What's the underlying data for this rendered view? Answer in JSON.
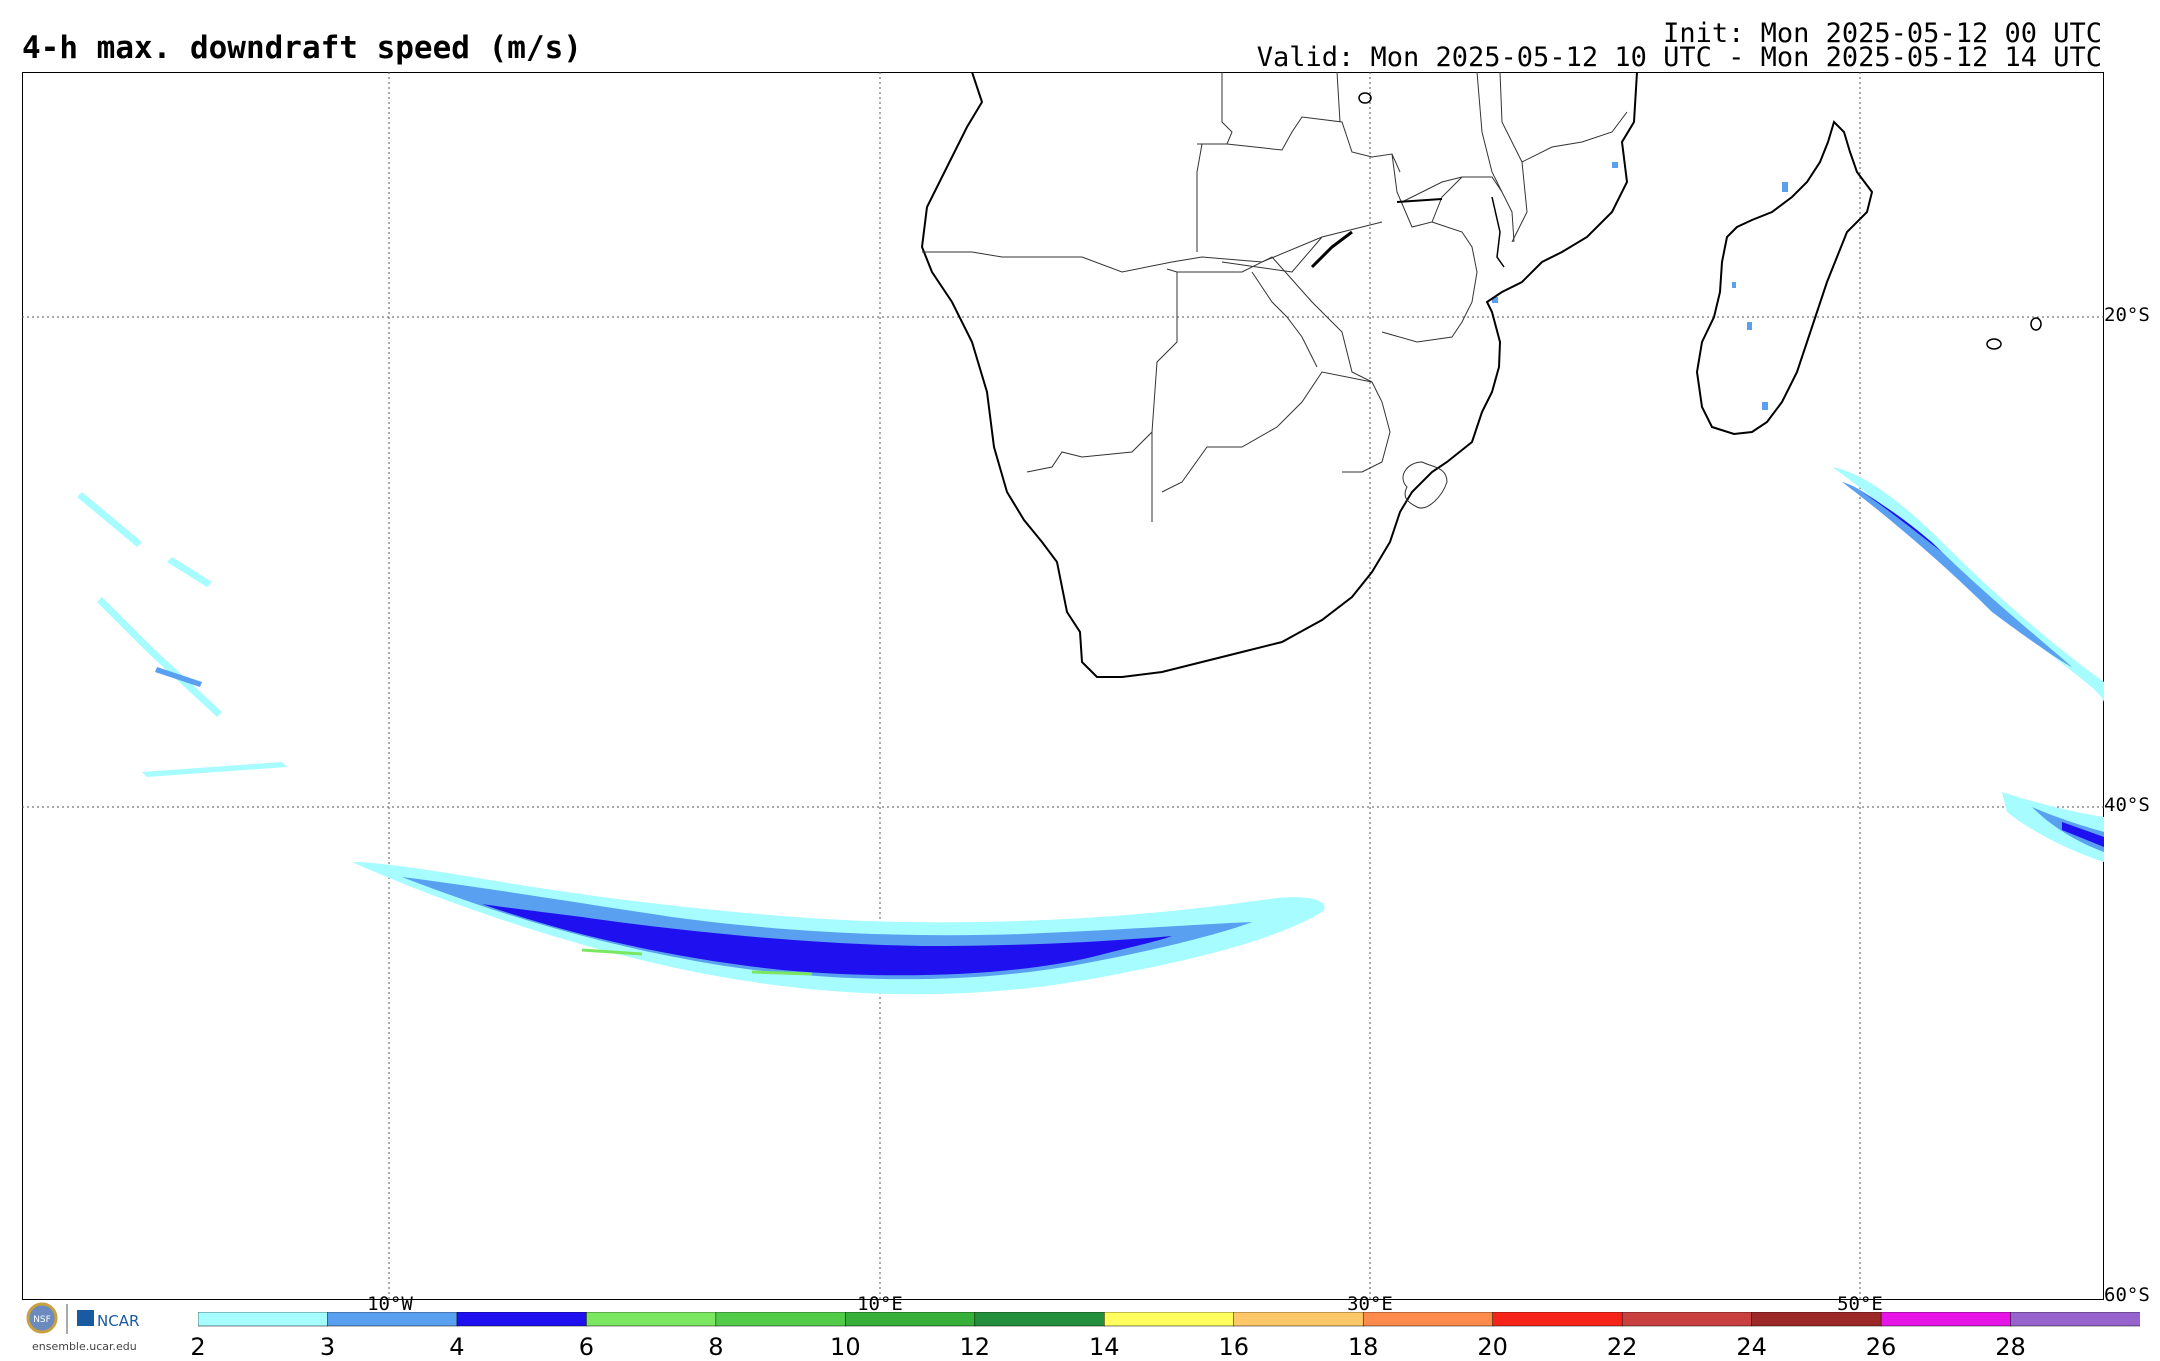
{
  "header": {
    "title": "4-h max. downdraft speed (m/s)",
    "init": "Init: Mon 2025-05-12 00 UTC",
    "valid": "Valid: Mon 2025-05-12 10 UTC - Mon 2025-05-12 14 UTC"
  },
  "map": {
    "longitude_labels": [
      "10°W",
      "10°E",
      "30°E",
      "50°E"
    ],
    "latitude_labels": [
      "20°S",
      "40°S",
      "60°S"
    ],
    "gridlines": "dotted",
    "features": [
      "coastlines",
      "country borders",
      "Madagascar",
      "Lesotho",
      "Lake Malawi"
    ]
  },
  "colorbar": {
    "ticks": [
      "2",
      "3",
      "4",
      "6",
      "8",
      "10",
      "12",
      "14",
      "16",
      "18",
      "20",
      "22",
      "24",
      "26",
      "28"
    ],
    "colors": [
      "#a6fcff",
      "#5aa0f0",
      "#1f10f0",
      "#7be660",
      "#52cc48",
      "#36b038",
      "#238f3c",
      "#fefe5e",
      "#fec868",
      "#fe8a4c",
      "#f62418",
      "#c84040",
      "#9c2828",
      "#e614e6",
      "#9664cc"
    ]
  },
  "logo": {
    "org_left": "NSF",
    "org_right": "NCAR",
    "url": "ensemble.ucar.edu"
  }
}
